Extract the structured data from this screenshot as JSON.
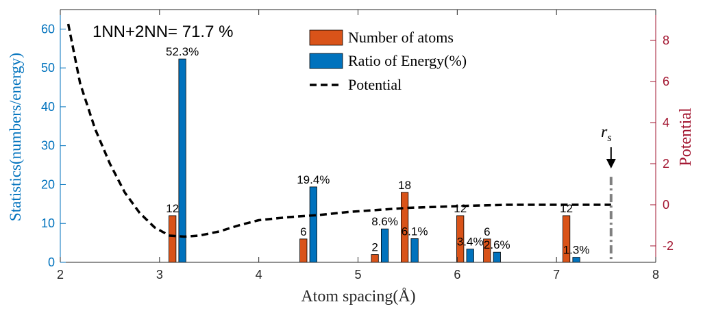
{
  "chart_data": {
    "type": "bar",
    "xlabel": "Atom spacing(Å)",
    "ylabel_left": "Statistics(numbers/energy)",
    "ylabel_right": "Potential",
    "xlim": [
      2,
      8
    ],
    "ylim_left": [
      0,
      65
    ],
    "ylim_right": [
      -2.8,
      9.5
    ],
    "x_ticks": [
      "2",
      "3",
      "4",
      "5",
      "6",
      "7",
      "8"
    ],
    "y_left_ticks": [
      "0",
      "10",
      "20",
      "30",
      "40",
      "50",
      "60"
    ],
    "y_right_ticks": [
      "-2",
      "0",
      "2",
      "4",
      "6",
      "8"
    ],
    "annotation": "1NN+2NN= 71.7 %",
    "rs_label_main": "r",
    "rs_label_sub": "s",
    "rs_x": 7.55,
    "colors": {
      "atoms": "#D95319",
      "energy": "#0072BD",
      "left_axis": "#0072BD",
      "right_axis": "#A2142F",
      "potential": "#000000",
      "rs_line": "#808080"
    },
    "series": [
      {
        "name": "Number of atoms",
        "x": [
          3.13,
          4.45,
          5.17,
          5.47,
          6.03,
          6.3,
          7.1
        ],
        "values": [
          12,
          6,
          2,
          18,
          12,
          6,
          12
        ],
        "labels": [
          "12",
          "6",
          "2",
          "18",
          "12",
          "6",
          "12"
        ]
      },
      {
        "name": "Ratio of Energy(%)",
        "x": [
          3.23,
          4.55,
          5.27,
          5.57,
          6.13,
          6.4,
          7.2
        ],
        "values": [
          52.3,
          19.4,
          8.6,
          6.1,
          3.4,
          2.6,
          1.3
        ],
        "labels": [
          "52.3%",
          "19.4%",
          "8.6%",
          "6.1%",
          "3.4%",
          "2.6%",
          "1.3%"
        ]
      }
    ],
    "potential": {
      "name": "Potential",
      "x": [
        2.08,
        2.2,
        2.35,
        2.5,
        2.65,
        2.8,
        2.95,
        3.1,
        3.25,
        3.4,
        3.6,
        3.8,
        4.0,
        4.3,
        4.6,
        4.9,
        5.2,
        5.5,
        5.8,
        6.1,
        6.5,
        7.0,
        7.55
      ],
      "y": [
        8.8,
        5.9,
        3.7,
        2.0,
        0.6,
        -0.4,
        -1.1,
        -1.5,
        -1.55,
        -1.5,
        -1.3,
        -1.0,
        -0.75,
        -0.6,
        -0.5,
        -0.35,
        -0.25,
        -0.15,
        -0.1,
        -0.05,
        0,
        0,
        0
      ]
    }
  }
}
